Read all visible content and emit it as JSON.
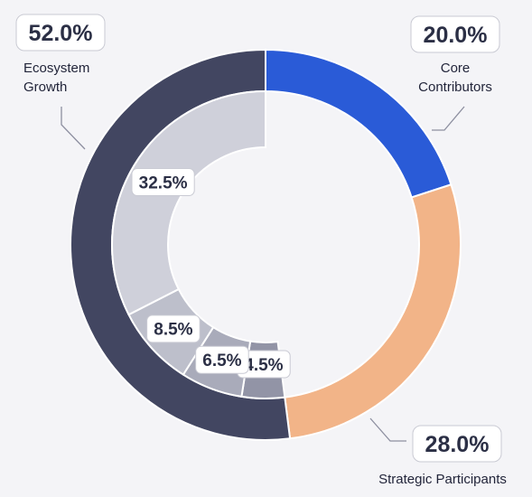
{
  "chart_data": {
    "type": "pie",
    "variant": "nested-donut",
    "title": "",
    "outer_ring": {
      "slices": [
        {
          "name": "Core Contributors",
          "value": 20.0,
          "label": "20.0%",
          "color": "#2a5bd7"
        },
        {
          "name": "Strategic Participants",
          "value": 28.0,
          "label": "28.0%",
          "color": "#f2b488"
        },
        {
          "name": "Ecosystem Growth",
          "value": 52.0,
          "label": "52.0%",
          "color": "#424661"
        }
      ]
    },
    "inner_ring": {
      "start_value": 48.0,
      "slices": [
        {
          "value": 4.5,
          "label": "4.5%",
          "color": "#9294a6"
        },
        {
          "value": 6.5,
          "label": "6.5%",
          "color": "#a9abba"
        },
        {
          "value": 8.5,
          "label": "8.5%",
          "color": "#bdbfcb"
        },
        {
          "value": 32.5,
          "label": "32.5%",
          "color": "#cfd0da"
        }
      ]
    },
    "outer_labels": [
      {
        "slice": 0,
        "name_lines": [
          "Core",
          "Contributors"
        ]
      },
      {
        "slice": 1,
        "name_lines": [
          "Strategic Participants"
        ]
      },
      {
        "slice": 2,
        "name_lines": [
          "Ecosystem",
          "Growth"
        ]
      }
    ]
  }
}
